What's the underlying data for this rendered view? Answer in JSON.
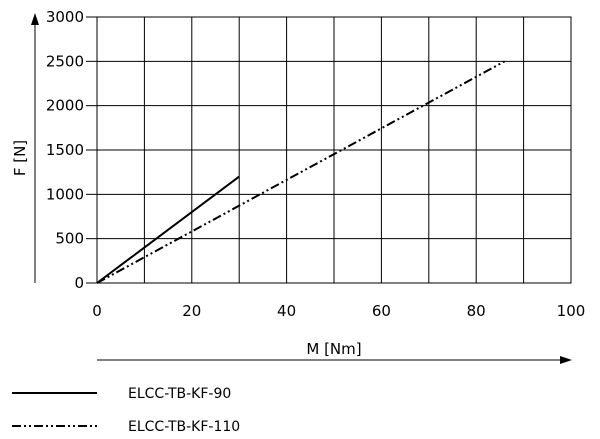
{
  "chart_data": {
    "type": "line",
    "xlabel": "M [Nm]",
    "ylabel": "F [N]",
    "xlim": [
      0,
      100
    ],
    "ylim": [
      0,
      3000
    ],
    "xticks": [
      0,
      20,
      40,
      60,
      80,
      100
    ],
    "yticks": [
      0,
      500,
      1000,
      1500,
      2000,
      2500,
      3000
    ],
    "grid": true,
    "legend_position": "bottom-left",
    "series": [
      {
        "name": "ELCC-TB-KF-90",
        "style": "solid",
        "x": [
          0,
          30
        ],
        "y": [
          0,
          1200
        ]
      },
      {
        "name": "ELCC-TB-KF-110",
        "style": "dash-dot-dot",
        "x": [
          0,
          86
        ],
        "y": [
          0,
          2500
        ]
      }
    ]
  }
}
